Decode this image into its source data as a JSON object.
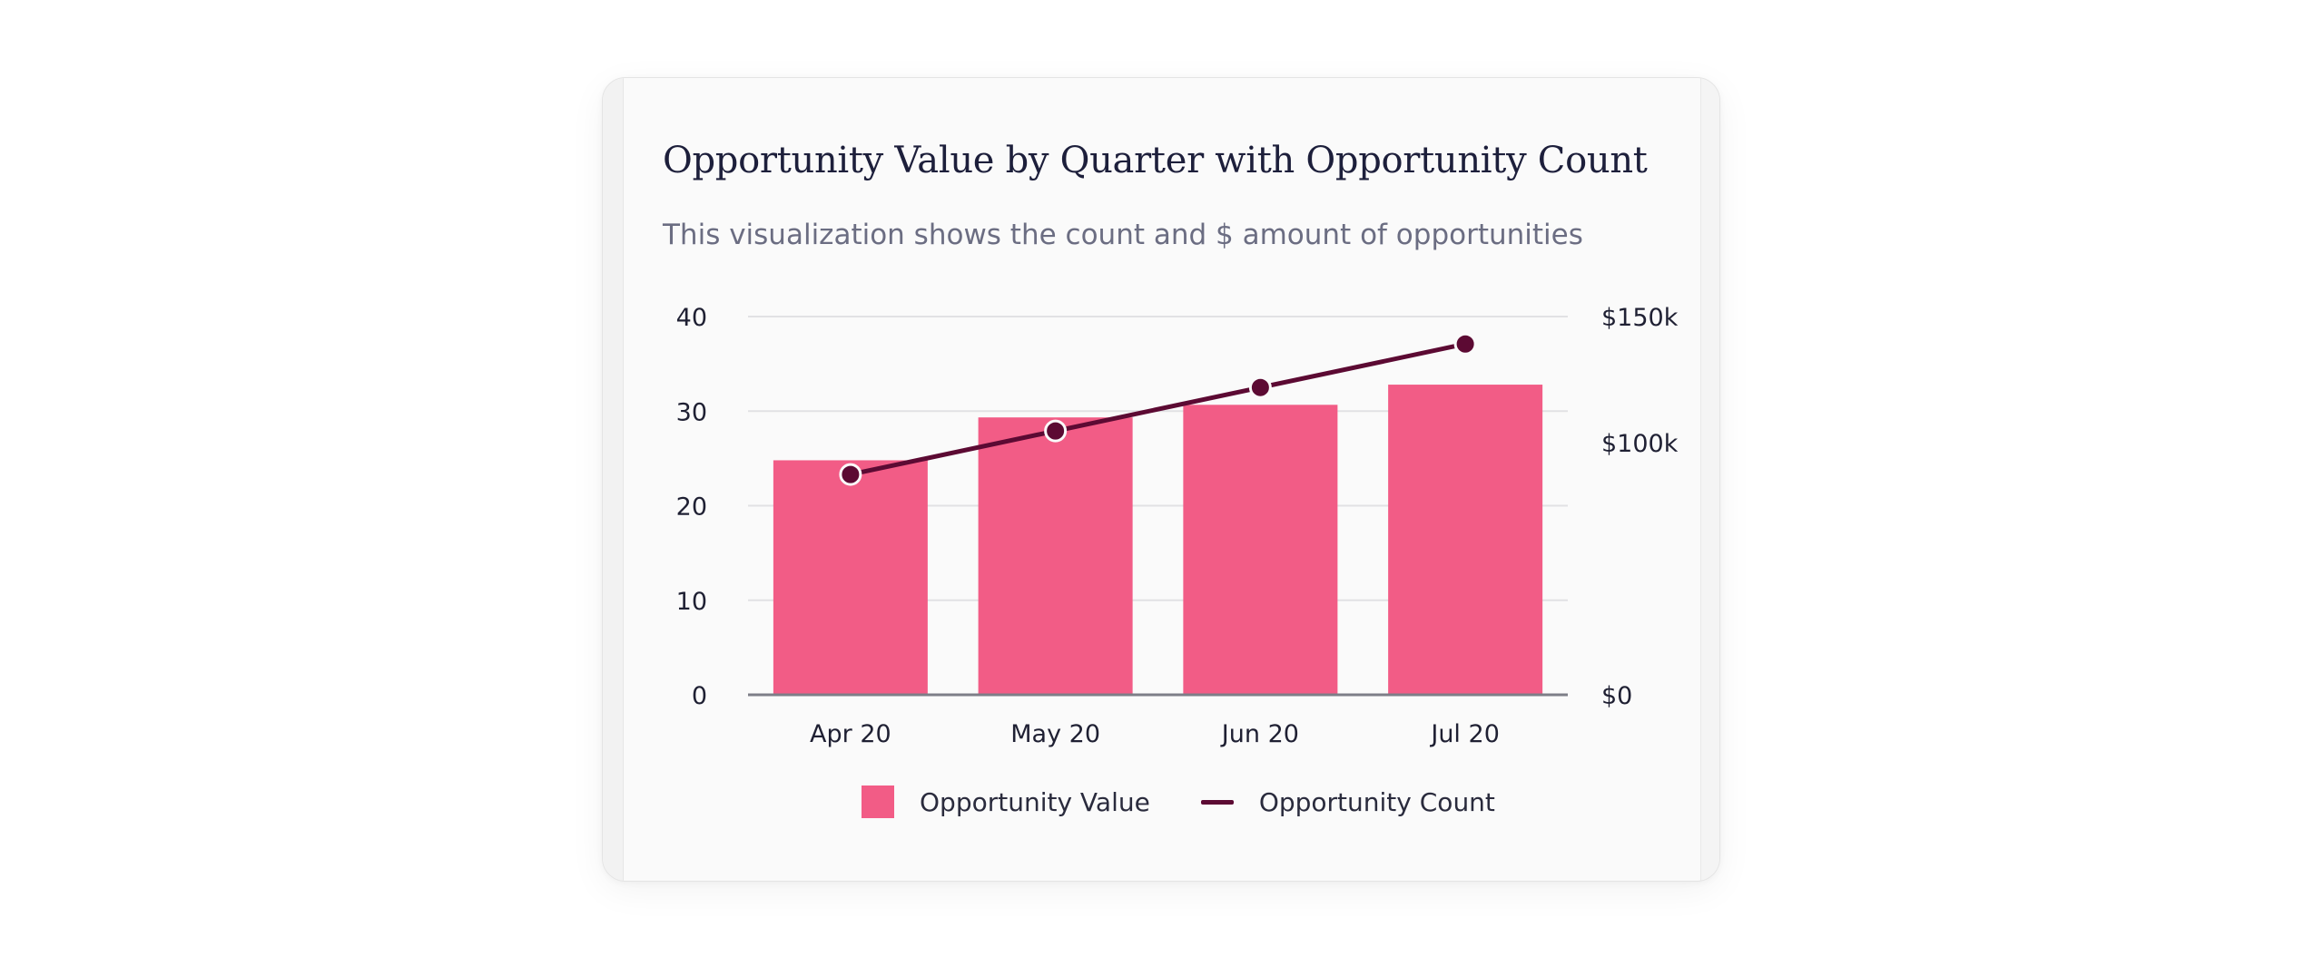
{
  "card": {
    "title": "Opportunity Value by Quarter with Opportunity Count",
    "subtitle": "This visualization shows the count and $ amount of opportunities"
  },
  "legend": {
    "items": [
      {
        "label": "Opportunity Value",
        "kind": "bar",
        "color": "#f25c86"
      },
      {
        "label": "Opportunity Count",
        "kind": "line",
        "color": "#5c0a33"
      }
    ]
  },
  "chart_data": {
    "type": "bar",
    "title": "Opportunity Value by Quarter with Opportunity Count",
    "subtitle": "This visualization shows the count and $ amount of opportunities",
    "categories": [
      "Apr 20",
      "May 20",
      "Jun 20",
      "Jul 20"
    ],
    "series": [
      {
        "name": "Opportunity Value",
        "type": "bar",
        "axis": "right",
        "color": "#f25c86",
        "values": [
          93000,
          110000,
          115000,
          123000
        ]
      },
      {
        "name": "Opportunity Count",
        "type": "line",
        "axis": "left",
        "color": "#5c0a33",
        "values": [
          23.3,
          27.9,
          32.5,
          37.1
        ]
      }
    ],
    "y_left": {
      "ylim": [
        0,
        40
      ],
      "ticks": [
        0,
        10,
        20,
        30,
        40
      ],
      "tick_labels": [
        "0",
        "10",
        "20",
        "30",
        "40"
      ]
    },
    "y_right": {
      "ylim": [
        0,
        150000
      ],
      "ticks": [
        0,
        100000,
        150000
      ],
      "tick_labels": [
        "$0",
        "$100k",
        "$150k"
      ]
    },
    "grid": true,
    "legend_position": "bottom"
  }
}
